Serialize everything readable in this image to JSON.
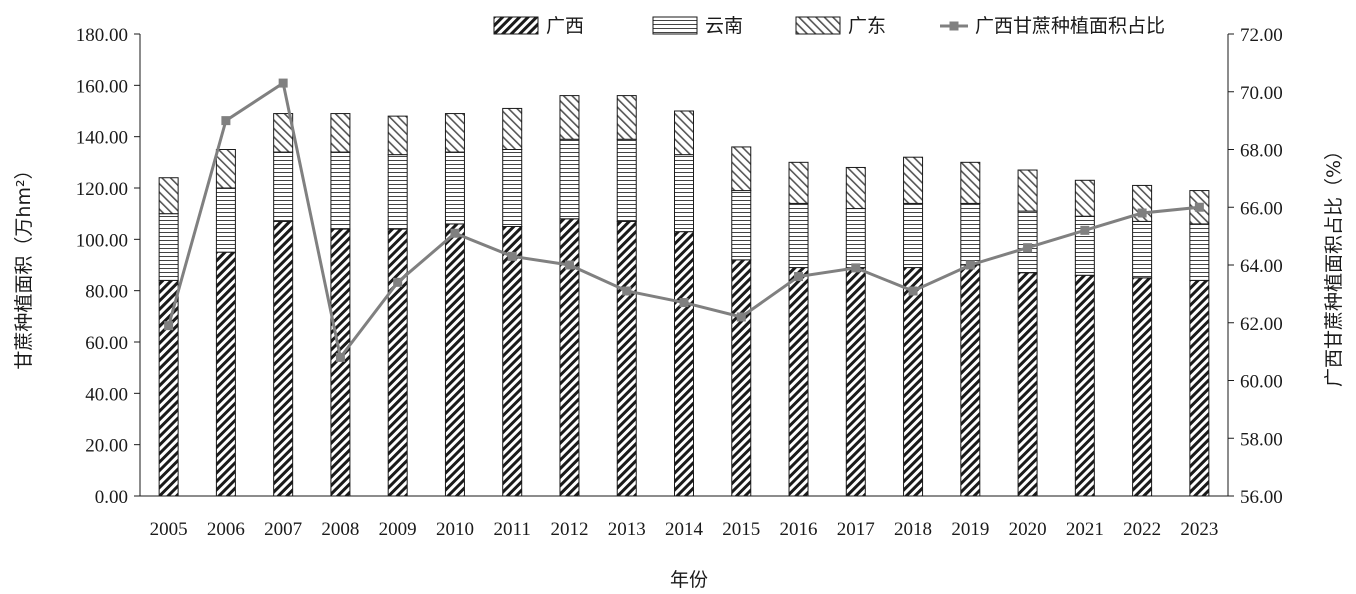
{
  "chart_data": {
    "type": "bar",
    "stacked": true,
    "xlabel": "年份",
    "ylabel": "甘蔗种植面积（万hm²）",
    "y2label": "广西甘蔗种植面积占比（%）",
    "ylim": [
      0,
      180
    ],
    "y2lim": [
      56,
      72
    ],
    "yticks": [
      "0.00",
      "20.00",
      "40.00",
      "60.00",
      "80.00",
      "100.00",
      "120.00",
      "140.00",
      "160.00",
      "180.00"
    ],
    "y2ticks": [
      "56.00",
      "58.00",
      "60.00",
      "62.00",
      "64.00",
      "66.00",
      "68.00",
      "70.00",
      "72.00"
    ],
    "categories": [
      "2005",
      "2006",
      "2007",
      "2008",
      "2009",
      "2010",
      "2011",
      "2012",
      "2013",
      "2014",
      "2015",
      "2016",
      "2017",
      "2018",
      "2019",
      "2020",
      "2021",
      "2022",
      "2023"
    ],
    "legend_position": "top",
    "series": [
      {
        "name": "广西",
        "kind": "bar",
        "pattern": "dense-diagonal",
        "values": [
          84,
          95,
          107,
          104,
          104,
          106,
          105,
          108,
          107,
          103,
          92,
          89,
          89,
          89,
          90,
          87,
          86,
          85,
          84
        ]
      },
      {
        "name": "云南",
        "kind": "bar",
        "pattern": "horizontal-lines",
        "values": [
          26,
          25,
          27,
          30,
          29,
          28,
          30,
          31,
          32,
          30,
          27,
          25,
          23,
          25,
          24,
          24,
          23,
          22,
          22
        ]
      },
      {
        "name": "广东",
        "kind": "bar",
        "pattern": "light-diagonal",
        "values": [
          14,
          15,
          15,
          15,
          15,
          15,
          16,
          17,
          17,
          17,
          17,
          16,
          16,
          18,
          16,
          16,
          14,
          14,
          13
        ]
      },
      {
        "name": "广西甘蔗种植面积占比",
        "kind": "line",
        "axis": "right",
        "color": "#808080",
        "values": [
          61.9,
          69.0,
          70.3,
          60.8,
          63.4,
          65.1,
          64.3,
          64.0,
          63.1,
          62.7,
          62.2,
          63.6,
          63.9,
          63.1,
          64.0,
          64.6,
          65.2,
          65.8,
          66.0
        ]
      }
    ]
  }
}
